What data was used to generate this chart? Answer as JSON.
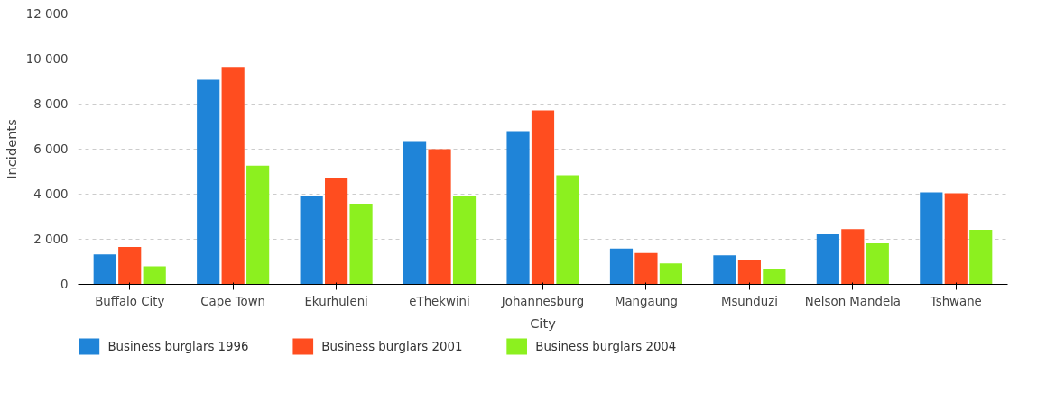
{
  "chart_data": {
    "type": "bar",
    "xlabel": "City",
    "ylabel": "Incidents",
    "categories": [
      "Buffalo City",
      "Cape Town",
      "Ekurhuleni",
      "eThekwini",
      "Johannesburg",
      "Mangaung",
      "Msunduzi",
      "Nelson Mandela",
      "Tshwane"
    ],
    "series": [
      {
        "name": "Business burglars 1996",
        "color": "#1f84d8",
        "values": [
          1330,
          9080,
          3910,
          6360,
          6800,
          1590,
          1290,
          2220,
          4080
        ]
      },
      {
        "name": "Business burglars 2001",
        "color": "#ff4d1f",
        "values": [
          1660,
          9650,
          4740,
          6000,
          7720,
          1390,
          1090,
          2450,
          4040
        ]
      },
      {
        "name": "Business burglars 2004",
        "color": "#8cf01f",
        "values": [
          800,
          5270,
          3580,
          3940,
          4840,
          930,
          660,
          1820,
          2420
        ]
      }
    ],
    "ylim": [
      0,
      12000
    ],
    "yticks": [
      {
        "value": 0,
        "label": "0"
      },
      {
        "value": 2000,
        "label": "2 000"
      },
      {
        "value": 4000,
        "label": "4 000"
      },
      {
        "value": 6000,
        "label": "6 000"
      },
      {
        "value": 8000,
        "label": "8 000"
      },
      {
        "value": 10000,
        "label": "10 000"
      },
      {
        "value": 12000,
        "label": "12 000"
      }
    ],
    "grid": "y",
    "legend": "bottom"
  }
}
